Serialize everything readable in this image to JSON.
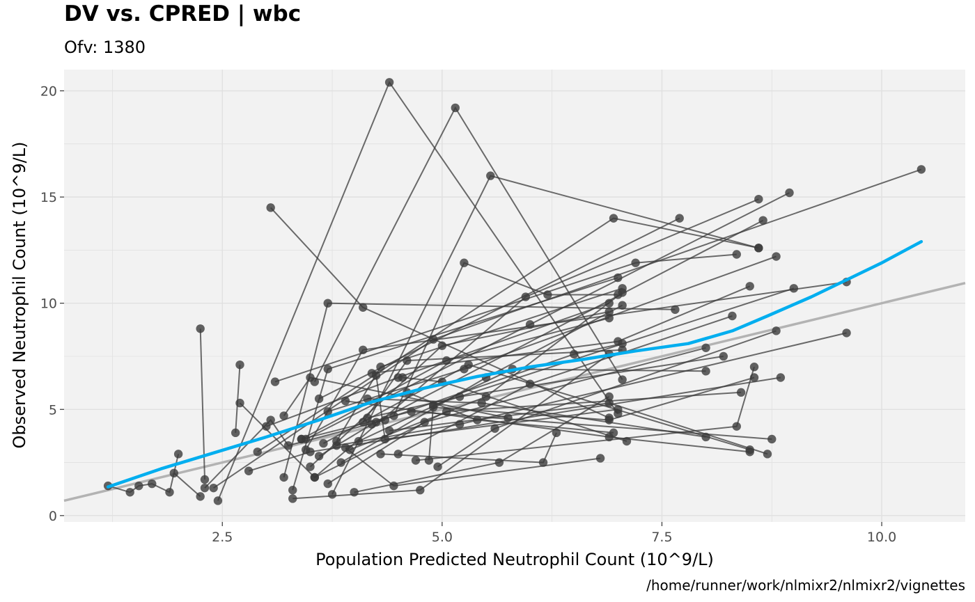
{
  "chart_data": {
    "type": "scatter",
    "title": "DV vs. CPRED | wbc",
    "subtitle": "Ofv: 1380",
    "caption": "/home/runner/work/nlmixr2/nlmixr2/vignettes",
    "xlabel": "Population Predicted Neutrophil Count (10^9/L)",
    "ylabel": "Observed Neutrophil Count (10^9/L)",
    "xlim": [
      0.7,
      10.95
    ],
    "ylim": [
      -0.3,
      21.0
    ],
    "x_ticks": [
      2.5,
      5.0,
      7.5,
      10.0
    ],
    "x_tick_labels": [
      "2.5",
      "5.0",
      "7.5",
      "10.0"
    ],
    "y_ticks": [
      0,
      5,
      10,
      15,
      20
    ],
    "y_tick_labels": [
      "0",
      "5",
      "10",
      "15",
      "20"
    ],
    "grid": true,
    "colors": {
      "panel_background": "#f2f2f2",
      "grid": "#e0e0e0",
      "points_and_lines": "#3b3b3b",
      "smooth": "#00aeef",
      "identity": "#b3b3b3"
    },
    "identity_line": {
      "x": [
        0.7,
        10.95
      ],
      "y": [
        0.7,
        10.95
      ]
    },
    "smooth": {
      "x": [
        1.2,
        1.8,
        2.4,
        3.0,
        3.6,
        4.2,
        4.8,
        5.4,
        6.0,
        6.6,
        7.2,
        7.8,
        8.3,
        8.7,
        9.2,
        9.6,
        10.0,
        10.45
      ],
      "y": [
        1.35,
        2.2,
        2.95,
        3.7,
        4.5,
        5.35,
        6.0,
        6.55,
        7.0,
        7.35,
        7.75,
        8.1,
        8.7,
        9.4,
        10.3,
        11.1,
        11.9,
        12.9
      ]
    },
    "subjects": [
      {
        "x": [
          2.25,
          2.3
        ],
        "y": [
          8.8,
          1.7
        ]
      },
      {
        "x": [
          3.05,
          4.1,
          6.9
        ],
        "y": [
          14.5,
          9.8,
          4.6
        ]
      },
      {
        "x": [
          3.75,
          5.55,
          8.6
        ],
        "y": [
          1.0,
          16.0,
          12.6
        ]
      },
      {
        "x": [
          2.45,
          4.4,
          7.0
        ],
        "y": [
          0.7,
          20.4,
          4.8
        ]
      },
      {
        "x": [
          3.55,
          5.15,
          7.05
        ],
        "y": [
          6.3,
          19.2,
          6.4
        ]
      },
      {
        "x": [
          2.9,
          6.95,
          8.6
        ],
        "y": [
          3.0,
          14.0,
          12.6
        ]
      },
      {
        "x": [
          3.6,
          7.7
        ],
        "y": [
          5.5,
          14.0
        ]
      },
      {
        "x": [
          3.1,
          7.2,
          8.35
        ],
        "y": [
          6.3,
          11.9,
          12.3
        ]
      },
      {
        "x": [
          3.2,
          3.7,
          7.65
        ],
        "y": [
          1.8,
          10.0,
          9.7
        ]
      },
      {
        "x": [
          4.45,
          5.25,
          6.2,
          7.0
        ],
        "y": [
          4.7,
          11.9,
          10.4,
          10.4
        ]
      },
      {
        "x": [
          1.2,
          1.45,
          1.55,
          1.7,
          1.9,
          2.0
        ],
        "y": [
          1.4,
          1.1,
          1.4,
          1.5,
          1.1,
          2.9
        ]
      },
      {
        "x": [
          1.95,
          2.25
        ],
        "y": [
          2.0,
          0.9
        ]
      },
      {
        "x": [
          2.65,
          2.7
        ],
        "y": [
          3.9,
          7.1
        ]
      },
      {
        "x": [
          2.7,
          3.55,
          5.95,
          8.6
        ],
        "y": [
          5.3,
          1.8,
          10.3,
          14.9
        ]
      },
      {
        "x": [
          3.0,
          4.5,
          6.9
        ],
        "y": [
          4.2,
          6.5,
          10.0
        ]
      },
      {
        "x": [
          3.3,
          3.7,
          7.0
        ],
        "y": [
          1.2,
          6.9,
          11.2
        ]
      },
      {
        "x": [
          3.5,
          5.0,
          6.9
        ],
        "y": [
          2.3,
          8.0,
          9.6
        ]
      },
      {
        "x": [
          3.6,
          4.2,
          8.65
        ],
        "y": [
          2.8,
          4.3,
          13.9
        ]
      },
      {
        "x": [
          3.3,
          4.75,
          6.9
        ],
        "y": [
          0.8,
          1.2,
          7.6
        ]
      },
      {
        "x": [
          4.0,
          5.65,
          6.9
        ],
        "y": [
          1.1,
          2.5,
          5.6
        ]
      },
      {
        "x": [
          4.3,
          6.15,
          6.3
        ],
        "y": [
          2.9,
          2.5,
          3.9
        ]
      },
      {
        "x": [
          3.9,
          4.45,
          6.8
        ],
        "y": [
          3.2,
          1.4,
          2.7
        ]
      },
      {
        "x": [
          2.8,
          3.5,
          8.85
        ],
        "y": [
          2.1,
          3.0,
          6.5
        ]
      },
      {
        "x": [
          3.2,
          3.5,
          5.75
        ],
        "y": [
          4.7,
          6.5,
          4.6
        ]
      },
      {
        "x": [
          3.8,
          4.3,
          7.05
        ],
        "y": [
          3.5,
          7.0,
          10.7
        ]
      },
      {
        "x": [
          3.4,
          5.05,
          6.9
        ],
        "y": [
          3.6,
          7.3,
          9.3
        ]
      },
      {
        "x": [
          4.1,
          4.6,
          7.05
        ],
        "y": [
          4.4,
          7.3,
          7.8
        ]
      },
      {
        "x": [
          4.2,
          7.0,
          8.5
        ],
        "y": [
          6.7,
          8.2,
          10.8
        ]
      },
      {
        "x": [
          3.7,
          5.25,
          8.8
        ],
        "y": [
          4.9,
          6.9,
          12.2
        ]
      },
      {
        "x": [
          4.5,
          6.0,
          8.3
        ],
        "y": [
          2.9,
          6.2,
          9.4
        ]
      },
      {
        "x": [
          3.45,
          4.1,
          9.6
        ],
        "y": [
          3.1,
          7.8,
          11.0
        ]
      },
      {
        "x": [
          4.85,
          4.9,
          9.0
        ],
        "y": [
          2.6,
          5.2,
          10.7
        ]
      },
      {
        "x": [
          2.4,
          4.9,
          10.45
        ],
        "y": [
          1.3,
          8.3,
          16.3
        ]
      },
      {
        "x": [
          3.45,
          6.0,
          8.95
        ],
        "y": [
          3.6,
          9.0,
          15.2
        ]
      },
      {
        "x": [
          3.85,
          5.5,
          7.05
        ],
        "y": [
          2.5,
          6.5,
          9.9
        ]
      },
      {
        "x": [
          3.95,
          5.5,
          7.05
        ],
        "y": [
          3.1,
          5.6,
          10.5
        ]
      },
      {
        "x": [
          4.25,
          6.5,
          7.05
        ],
        "y": [
          4.4,
          7.6,
          8.1
        ]
      },
      {
        "x": [
          4.7,
          8.35,
          8.55
        ],
        "y": [
          2.6,
          4.2,
          7.0
        ]
      },
      {
        "x": [
          3.7,
          4.8,
          8.0
        ],
        "y": [
          1.5,
          4.4,
          7.9
        ]
      },
      {
        "x": [
          4.55,
          5.0,
          7.1
        ],
        "y": [
          6.5,
          6.3,
          3.5
        ]
      },
      {
        "x": [
          4.6,
          5.4,
          6.95
        ],
        "y": [
          5.8,
          4.5,
          3.9
        ]
      },
      {
        "x": [
          4.15,
          5.2,
          8.2
        ],
        "y": [
          4.6,
          5.6,
          7.5
        ]
      },
      {
        "x": [
          2.3,
          3.05,
          3.25,
          4.35
        ],
        "y": [
          1.3,
          4.5,
          3.3,
          4.5
        ]
      },
      {
        "x": [
          3.4,
          4.65,
          8.75
        ],
        "y": [
          3.6,
          4.9,
          3.6
        ]
      },
      {
        "x": [
          3.55,
          5.05,
          8.4
        ],
        "y": [
          1.8,
          4.9,
          5.8
        ]
      },
      {
        "x": [
          4.95,
          5.6,
          8.8
        ],
        "y": [
          2.3,
          4.1,
          8.7
        ]
      },
      {
        "x": [
          3.8,
          5.2,
          9.6
        ],
        "y": [
          3.3,
          4.3,
          8.6
        ]
      },
      {
        "x": [
          3.9,
          6.9,
          8.5
        ],
        "y": [
          5.4,
          3.7,
          3.0
        ]
      },
      {
        "x": [
          4.9,
          6.9,
          8.55
        ],
        "y": [
          5.1,
          4.5,
          6.5
        ]
      },
      {
        "x": [
          4.15,
          5.45,
          8.0
        ],
        "y": [
          5.5,
          5.3,
          3.7
        ]
      },
      {
        "x": [
          4.4,
          6.9,
          8.7
        ],
        "y": [
          4.0,
          5.3,
          2.9
        ]
      },
      {
        "x": [
          3.65,
          5.3,
          8.5
        ],
        "y": [
          3.4,
          7.1,
          3.1
        ]
      },
      {
        "x": [
          4.25,
          4.35,
          7.0
        ],
        "y": [
          6.6,
          3.6,
          5.0
        ]
      },
      {
        "x": [
          4.05,
          5.8,
          8.0
        ],
        "y": [
          3.5,
          6.9,
          6.8
        ]
      }
    ]
  }
}
